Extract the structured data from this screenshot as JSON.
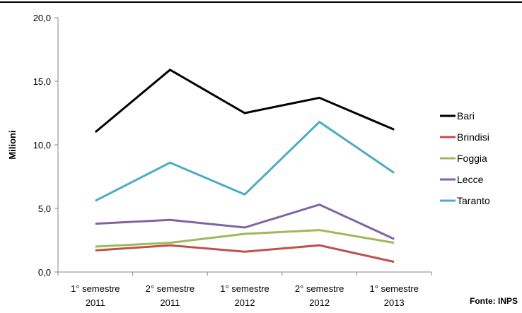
{
  "chart_data": {
    "type": "line",
    "categories": [
      [
        "1° semestre",
        "2011"
      ],
      [
        "2° semestre",
        "2011"
      ],
      [
        "1° semestre",
        "2012"
      ],
      [
        "2° semestre",
        "2012"
      ],
      [
        "1° semestre",
        "2013"
      ]
    ],
    "series": [
      {
        "name": "Bari",
        "color": "#000000",
        "values": [
          11.0,
          15.9,
          12.5,
          13.7,
          11.2
        ]
      },
      {
        "name": "Brindisi",
        "color": "#c0504d",
        "values": [
          1.7,
          2.1,
          1.6,
          2.1,
          0.8
        ]
      },
      {
        "name": "Foggia",
        "color": "#9bbb59",
        "values": [
          2.0,
          2.3,
          3.0,
          3.3,
          2.3
        ]
      },
      {
        "name": "Lecce",
        "color": "#8064a2",
        "values": [
          3.8,
          4.1,
          3.5,
          5.3,
          2.6
        ]
      },
      {
        "name": "Taranto",
        "color": "#4bacc6",
        "values": [
          5.6,
          8.6,
          6.1,
          11.8,
          7.8
        ]
      }
    ],
    "y_ticks": [
      "0,0",
      "5,0",
      "10,0",
      "15,0",
      "20,0"
    ],
    "y_tick_values": [
      0,
      5,
      10,
      15,
      20
    ],
    "title": "",
    "xlabel": "",
    "ylabel": "Milioni",
    "ylim": [
      0,
      20
    ],
    "grid": false,
    "legend_position": "right",
    "source_note": "Fonte: INPS"
  }
}
